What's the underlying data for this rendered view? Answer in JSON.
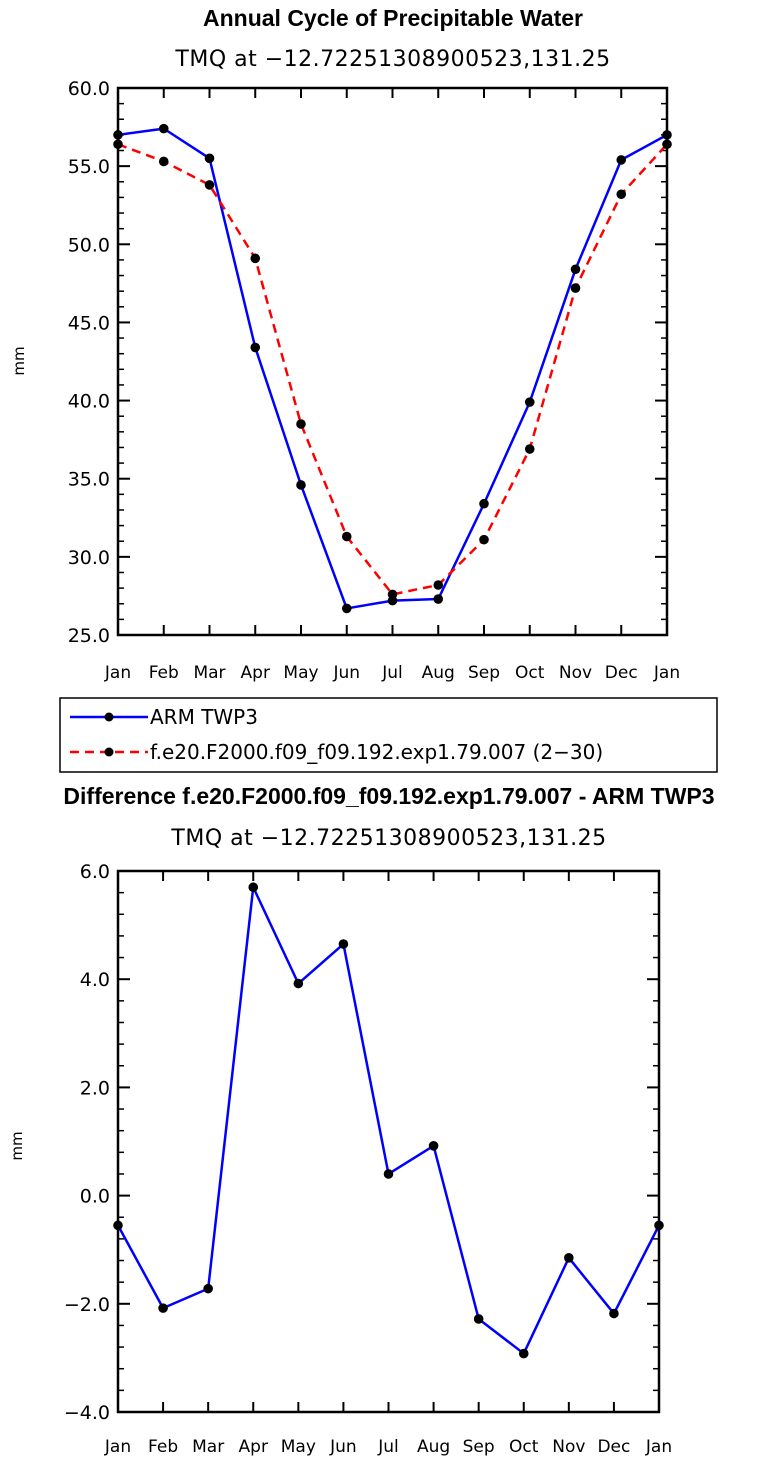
{
  "colors": {
    "obs": "#0000ff",
    "model": "#ff0000",
    "marker": "#000000"
  },
  "chart_data": [
    {
      "type": "line",
      "title": "Annual Cycle of Precipitable Water",
      "subtitle": "TMQ at −12.72251308900523,131.25",
      "xlabel": "",
      "ylabel": "mm",
      "categories": [
        "Jan",
        "Feb",
        "Mar",
        "Apr",
        "May",
        "Jun",
        "Jul",
        "Aug",
        "Sep",
        "Oct",
        "Nov",
        "Dec",
        "Jan"
      ],
      "ylim": [
        25.0,
        60.0
      ],
      "yticks": [
        25.0,
        30.0,
        35.0,
        40.0,
        45.0,
        50.0,
        55.0,
        60.0
      ],
      "ytick_labels": [
        "25.0",
        "30.0",
        "35.0",
        "40.0",
        "45.0",
        "50.0",
        "55.0",
        "60.0"
      ],
      "series": [
        {
          "name": "ARM TWP3",
          "style": "solid",
          "color": "#0000ff",
          "values": [
            57.0,
            57.4,
            55.5,
            43.4,
            34.6,
            26.7,
            27.2,
            27.3,
            33.4,
            39.9,
            48.4,
            55.4,
            57.0
          ]
        },
        {
          "name": "f.e20.F2000.f09_f09.192.exp1.79.007 (2−30)",
          "style": "dashed",
          "color": "#ff0000",
          "values": [
            56.4,
            55.3,
            53.8,
            49.1,
            38.5,
            31.3,
            27.6,
            28.2,
            31.1,
            36.9,
            47.2,
            53.2,
            56.4
          ]
        }
      ],
      "legend": [
        "ARM TWP3",
        "f.e20.F2000.f09_f09.192.exp1.79.007 (2−30)"
      ]
    },
    {
      "type": "line",
      "title": "Difference f.e20.F2000.f09_f09.192.exp1.79.007 - ARM TWP3",
      "subtitle": "TMQ at −12.72251308900523,131.25",
      "xlabel": "",
      "ylabel": "mm",
      "categories": [
        "Jan",
        "Feb",
        "Mar",
        "Apr",
        "May",
        "Jun",
        "Jul",
        "Aug",
        "Sep",
        "Oct",
        "Nov",
        "Dec",
        "Jan"
      ],
      "ylim": [
        -4.0,
        6.0
      ],
      "yticks": [
        -4.0,
        -2.0,
        0.0,
        2.0,
        4.0,
        6.0
      ],
      "ytick_labels": [
        "−4.0",
        "−2.0",
        "0.0",
        "2.0",
        "4.0",
        "6.0"
      ],
      "series": [
        {
          "name": "difference",
          "style": "solid",
          "color": "#0000ff",
          "values": [
            -0.55,
            -2.08,
            -1.72,
            5.7,
            3.92,
            4.65,
            0.4,
            0.92,
            -2.28,
            -2.92,
            -1.15,
            -2.18,
            -0.55
          ]
        }
      ]
    }
  ]
}
